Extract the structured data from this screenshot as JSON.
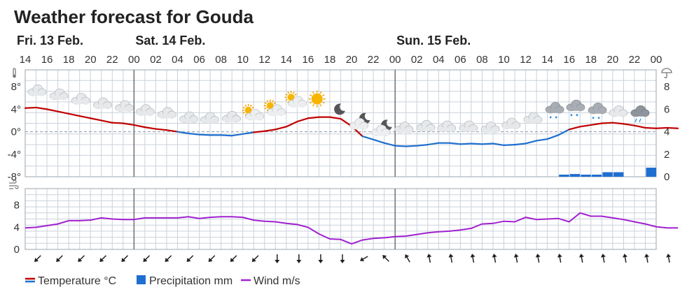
{
  "title": "Weather forecast for Gouda",
  "days": [
    {
      "label": "Fri. 13 Feb.",
      "start_hour_index": 0
    },
    {
      "label": "Sat. 14 Feb.",
      "start_hour_index": 10
    },
    {
      "label": "Sun. 15 Feb.",
      "start_hour_index": 34
    }
  ],
  "hour_labels": [
    "14",
    "16",
    "18",
    "20",
    "22",
    "00",
    "02",
    "04",
    "06",
    "08",
    "10",
    "12",
    "14",
    "16",
    "18",
    "20",
    "22",
    "00",
    "02",
    "04",
    "06",
    "08",
    "10",
    "12",
    "14",
    "16",
    "18",
    "20",
    "22",
    "00"
  ],
  "legend": [
    {
      "label": "Temperature °C",
      "color_hi": "#c00000",
      "color_lo": "#1f6fd0",
      "kind": "line"
    },
    {
      "label": "Precipitation mm",
      "color": "#1f6fd0",
      "kind": "box"
    },
    {
      "label": "Wind m/s",
      "color": "#a020d0",
      "kind": "line"
    }
  ],
  "icons": {
    "thermometer_axis": "thermometer-icon",
    "umbrella_axis": "umbrella-icon",
    "wind_axis": "wind-icon"
  },
  "chart_data": [
    {
      "type": "line",
      "name": "temperature-precipitation",
      "x_unit": "hours from Fri 13 Feb 14:00",
      "x_range": [
        0,
        58
      ],
      "ylim": [
        -8,
        11
      ],
      "y_ticks": [
        "8°",
        "4°",
        "0°",
        "-4°",
        "-8°"
      ],
      "y2_ticks": [
        "8",
        "6",
        "4",
        "2",
        "0"
      ],
      "y2lim": [
        0,
        8
      ],
      "temperature": [
        4.2,
        4.3,
        4.0,
        3.6,
        3.2,
        2.8,
        2.4,
        2.0,
        1.6,
        1.5,
        1.2,
        0.8,
        0.5,
        0.3,
        0.0,
        -0.3,
        -0.5,
        -0.6,
        -0.6,
        -0.7,
        -0.4,
        -0.1,
        0.1,
        0.4,
        0.9,
        1.8,
        2.4,
        2.6,
        2.6,
        2.3,
        1.0,
        -0.8,
        -1.4,
        -2.0,
        -2.5,
        -2.6,
        -2.5,
        -2.3,
        -2.0,
        -2.0,
        -2.2,
        -2.1,
        -2.2,
        -2.1,
        -2.4,
        -2.3,
        -2.1,
        -1.6,
        -1.3,
        -0.6,
        0.4,
        0.9,
        1.2,
        1.5,
        1.6,
        1.4,
        1.1,
        0.7,
        0.6,
        0.7,
        0.6
      ],
      "precipitation": [
        {
          "hour": 50,
          "mm": 0.2
        },
        {
          "hour": 51,
          "mm": 0.3
        },
        {
          "hour": 52,
          "mm": 0.2
        },
        {
          "hour": 53,
          "mm": 0.2
        },
        {
          "hour": 54,
          "mm": 0.5
        },
        {
          "hour": 55,
          "mm": 0.5
        },
        {
          "hour": 58,
          "mm": 1.0
        }
      ],
      "weather_icons": [
        {
          "hour": 0.7,
          "kind": "cloud"
        },
        {
          "hour": 3,
          "kind": "cloud"
        },
        {
          "hour": 5.3,
          "kind": "cloud"
        },
        {
          "hour": 7.6,
          "kind": "cloud"
        },
        {
          "hour": 9.9,
          "kind": "cloud"
        },
        {
          "hour": 12.1,
          "kind": "cloud"
        },
        {
          "hour": 14.4,
          "kind": "cloud"
        },
        {
          "hour": 16.7,
          "kind": "cloud"
        },
        {
          "hour": 18.9,
          "kind": "cloud"
        },
        {
          "hour": 21.2,
          "kind": "cloud"
        },
        {
          "hour": 23.5,
          "kind": "sun-cloud"
        },
        {
          "hour": 25.8,
          "kind": "sun-cloud"
        },
        {
          "hour": 28,
          "kind": "sun-cloud"
        },
        {
          "hour": 30.3,
          "kind": "sun"
        },
        {
          "hour": 32.6,
          "kind": "moon"
        },
        {
          "hour": 34.8,
          "kind": "moon-cloud"
        },
        {
          "hour": 37.1,
          "kind": "moon-cloud"
        },
        {
          "hour": 39.4,
          "kind": "cloud"
        },
        {
          "hour": 41.7,
          "kind": "cloud"
        },
        {
          "hour": 43.9,
          "kind": "cloud"
        },
        {
          "hour": 46.2,
          "kind": "cloud"
        },
        {
          "hour": 48.5,
          "kind": "cloud"
        },
        {
          "hour": 50.7,
          "kind": "cloud"
        },
        {
          "hour": 53,
          "kind": "cloud"
        },
        {
          "hour": 55.3,
          "kind": "snow-cloud"
        },
        {
          "hour": 57.5,
          "kind": "snow-cloud"
        },
        {
          "hour": 59.8,
          "kind": "snow-cloud"
        },
        {
          "hour": 62,
          "kind": "cloud"
        },
        {
          "hour": 64.3,
          "kind": "rain-cloud"
        }
      ],
      "grid": true
    },
    {
      "type": "line",
      "name": "wind",
      "x_unit": "hours from Fri 13 Feb 14:00",
      "ylim": [
        0,
        11
      ],
      "y_ticks": [
        "8",
        "4",
        "0"
      ],
      "wind": [
        3.9,
        4.0,
        4.3,
        4.6,
        5.2,
        5.2,
        5.3,
        5.7,
        5.5,
        5.4,
        5.4,
        5.7,
        5.7,
        5.7,
        5.7,
        5.9,
        5.6,
        5.8,
        5.9,
        5.9,
        5.8,
        5.3,
        5.1,
        5.0,
        4.7,
        4.5,
        4.0,
        2.8,
        1.9,
        1.8,
        1.0,
        1.7,
        2.0,
        2.1,
        2.3,
        2.4,
        2.7,
        3.0,
        3.2,
        3.3,
        3.5,
        3.8,
        4.6,
        4.7,
        5.1,
        5.0,
        5.8,
        5.4,
        5.5,
        5.6,
        5.0,
        6.6,
        6.0,
        6.0,
        5.7,
        5.4,
        5.0,
        4.6,
        4.1,
        3.9,
        3.9
      ],
      "wind_directions_deg": [
        45,
        45,
        45,
        45,
        45,
        45,
        45,
        45,
        45,
        45,
        0,
        0,
        0,
        0,
        0,
        0,
        60,
        90,
        90,
        135,
        135,
        135,
        180,
        180,
        180,
        180,
        180,
        180,
        180,
        180,
        180,
        180,
        180,
        180,
        180,
        180,
        180,
        180,
        180,
        180,
        180,
        180,
        180,
        180,
        180,
        180,
        180,
        180,
        180,
        180,
        180,
        180,
        180,
        180,
        180,
        180,
        180,
        180,
        180,
        180
      ],
      "arrow_angles": [
        225,
        225,
        225,
        225,
        225,
        225,
        225,
        225,
        225,
        225,
        225,
        180,
        180,
        180,
        180,
        240,
        315,
        330,
        350,
        350,
        350,
        350,
        350,
        350,
        350,
        350,
        350,
        350,
        350,
        350
      ],
      "grid": true
    }
  ]
}
